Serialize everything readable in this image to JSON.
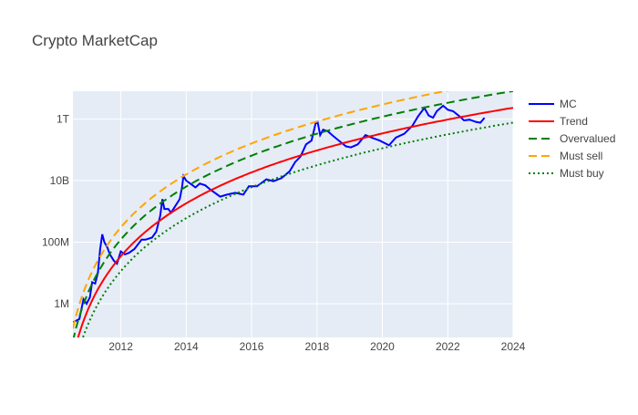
{
  "chart_data": {
    "type": "line",
    "title": "Crypto MarketCap",
    "xlabel": "",
    "ylabel": "",
    "x_axis": {
      "type": "date",
      "range": [
        "2010-07-15",
        "2024-01-01"
      ],
      "ticks": [
        "2012",
        "2014",
        "2016",
        "2018",
        "2020",
        "2022",
        "2024"
      ]
    },
    "y_axis": {
      "type": "log",
      "range": [
        80000,
        8000000000000
      ],
      "ticks": [
        {
          "value": 1000000,
          "label": "1M"
        },
        {
          "value": 100000000,
          "label": "100M"
        },
        {
          "value": 10000000000,
          "label": "10B"
        },
        {
          "value": 1000000000000,
          "label": "1T"
        }
      ]
    },
    "grid": true,
    "legend_position": "right",
    "colors": {
      "plot_bg": "#E5ECF6",
      "grid": "#ffffff",
      "text": "#444444",
      "title": "#444444"
    },
    "series": [
      {
        "name": "MC",
        "color": "#0000ff",
        "dash": "solid",
        "points": [
          [
            "2010-07-18",
            250000
          ],
          [
            "2010-08-20",
            280000
          ],
          [
            "2010-09-25",
            320000
          ],
          [
            "2010-10-20",
            700000
          ],
          [
            "2010-11-10",
            1400000
          ],
          [
            "2010-12-15",
            1000000
          ],
          [
            "2011-01-20",
            1600000
          ],
          [
            "2011-02-15",
            5000000
          ],
          [
            "2011-03-20",
            4500000
          ],
          [
            "2011-04-20",
            10000000
          ],
          [
            "2011-05-15",
            60000000
          ],
          [
            "2011-06-08",
            180000000
          ],
          [
            "2011-07-01",
            100000000
          ],
          [
            "2011-08-01",
            70000000
          ],
          [
            "2011-09-01",
            40000000
          ],
          [
            "2011-10-15",
            25000000
          ],
          [
            "2011-11-20",
            20000000
          ],
          [
            "2012-01-01",
            50000000
          ],
          [
            "2012-02-15",
            40000000
          ],
          [
            "2012-04-01",
            45000000
          ],
          [
            "2012-06-01",
            60000000
          ],
          [
            "2012-08-20",
            120000000
          ],
          [
            "2012-10-01",
            120000000
          ],
          [
            "2012-12-15",
            140000000
          ],
          [
            "2013-02-01",
            220000000
          ],
          [
            "2013-03-15",
            700000000
          ],
          [
            "2013-04-10",
            2500000000
          ],
          [
            "2013-05-01",
            1200000000
          ],
          [
            "2013-06-15",
            1200000000
          ],
          [
            "2013-07-15",
            900000000
          ],
          [
            "2013-09-01",
            1500000000
          ],
          [
            "2013-10-20",
            2500000000
          ],
          [
            "2013-11-15",
            6000000000
          ],
          [
            "2013-12-01",
            14000000000
          ],
          [
            "2014-01-01",
            10000000000
          ],
          [
            "2014-02-15",
            8000000000
          ],
          [
            "2014-04-15",
            6000000000
          ],
          [
            "2014-06-01",
            8000000000
          ],
          [
            "2014-08-01",
            7000000000
          ],
          [
            "2014-10-01",
            5000000000
          ],
          [
            "2015-01-15",
            3000000000
          ],
          [
            "2015-04-01",
            3500000000
          ],
          [
            "2015-07-01",
            4000000000
          ],
          [
            "2015-10-01",
            3500000000
          ],
          [
            "2015-12-01",
            6500000000
          ],
          [
            "2016-03-01",
            6500000000
          ],
          [
            "2016-06-15",
            11000000000
          ],
          [
            "2016-09-01",
            9500000000
          ],
          [
            "2016-12-01",
            12000000000
          ],
          [
            "2017-03-01",
            20000000000
          ],
          [
            "2017-05-01",
            40000000000
          ],
          [
            "2017-07-01",
            60000000000
          ],
          [
            "2017-09-01",
            150000000000
          ],
          [
            "2017-11-01",
            200000000000
          ],
          [
            "2017-12-15",
            700000000000
          ],
          [
            "2018-01-08",
            800000000000
          ],
          [
            "2018-02-05",
            300000000000
          ],
          [
            "2018-03-10",
            450000000000
          ],
          [
            "2018-05-01",
            400000000000
          ],
          [
            "2018-07-01",
            280000000000
          ],
          [
            "2018-09-01",
            200000000000
          ],
          [
            "2018-11-20",
            130000000000
          ],
          [
            "2019-01-15",
            120000000000
          ],
          [
            "2019-04-01",
            150000000000
          ],
          [
            "2019-06-26",
            300000000000
          ],
          [
            "2019-09-01",
            250000000000
          ],
          [
            "2019-12-01",
            200000000000
          ],
          [
            "2020-03-15",
            140000000000
          ],
          [
            "2020-06-01",
            250000000000
          ],
          [
            "2020-09-01",
            330000000000
          ],
          [
            "2020-12-01",
            600000000000
          ],
          [
            "2021-02-01",
            1200000000000
          ],
          [
            "2021-04-14",
            2300000000000
          ],
          [
            "2021-06-01",
            1300000000000
          ],
          [
            "2021-07-20",
            1100000000000
          ],
          [
            "2021-09-01",
            1800000000000
          ],
          [
            "2021-11-10",
            2700000000000
          ],
          [
            "2022-01-01",
            2000000000000
          ],
          [
            "2022-03-01",
            1800000000000
          ],
          [
            "2022-05-15",
            1200000000000
          ],
          [
            "2022-07-01",
            900000000000
          ],
          [
            "2022-09-01",
            950000000000
          ],
          [
            "2022-11-15",
            800000000000
          ],
          [
            "2022-12-31",
            760000000000
          ],
          [
            "2023-02-15",
            1100000000000
          ]
        ]
      },
      {
        "name": "Trend",
        "color": "#ff0000",
        "dash": "solid",
        "model": {
          "k": 5.7,
          "t0": "2010-01-03",
          "y_at_2020": 340000000000
        }
      },
      {
        "name": "Overvalued",
        "color": "#008000",
        "dash": "dash",
        "model": {
          "k": 5.7,
          "t0": "2010-01-03",
          "y_at_2020": 340000000000,
          "factor": 3.5
        }
      },
      {
        "name": "Must sell",
        "color": "#ffa500",
        "dash": "dash",
        "model": {
          "k": 5.7,
          "t0": "2010-01-03",
          "y_at_2020": 340000000000,
          "factor": 8.7
        }
      },
      {
        "name": "Must buy",
        "color": "#008000",
        "dash": "dot",
        "model": {
          "k": 5.7,
          "t0": "2010-01-03",
          "y_at_2020": 340000000000,
          "factor": 0.33
        }
      }
    ]
  }
}
